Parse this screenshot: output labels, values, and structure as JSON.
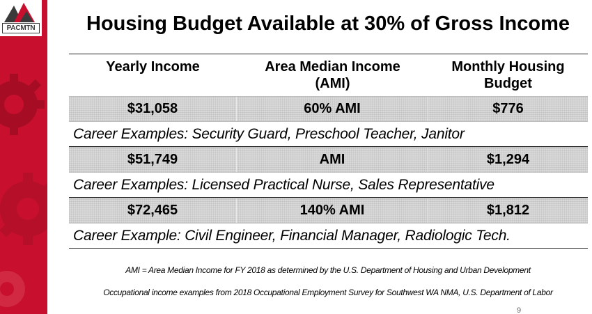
{
  "logo": {
    "text": "PACMTN"
  },
  "title": "Housing Budget Available at 30% of Gross Income",
  "table": {
    "headers": {
      "yearly_income": "Yearly Income",
      "ami_line1": "Area Median Income",
      "ami_line2": "(AMI)",
      "budget_line1": "Monthly Housing",
      "budget_line2": "Budget"
    },
    "rows": [
      {
        "income": "$31,058",
        "ami": "60% AMI",
        "budget": "$776",
        "careers": "Career Examples: Security Guard, Preschool Teacher, Janitor"
      },
      {
        "income": "$51,749",
        "ami": "AMI",
        "budget": "$1,294",
        "careers": "Career Examples: Licensed Practical Nurse, Sales Representative"
      },
      {
        "income": "$72,465",
        "ami": "140% AMI",
        "budget": "$1,812",
        "careers": "Career Example: Civil Engineer, Financial Manager, Radiologic Tech."
      }
    ]
  },
  "footnotes": {
    "ami_note": "AMI = Area Median Income for FY 2018 as determined by the U.S. Department of Housing and Urban Development",
    "source_note": "Occupational income examples from 2018 Occupational Employment Survey for Southwest WA NMA, U.S. Department of Labor"
  },
  "page_number": "9",
  "colors": {
    "side_band": "#c8102e",
    "row_shade": "#d9d9d9"
  }
}
